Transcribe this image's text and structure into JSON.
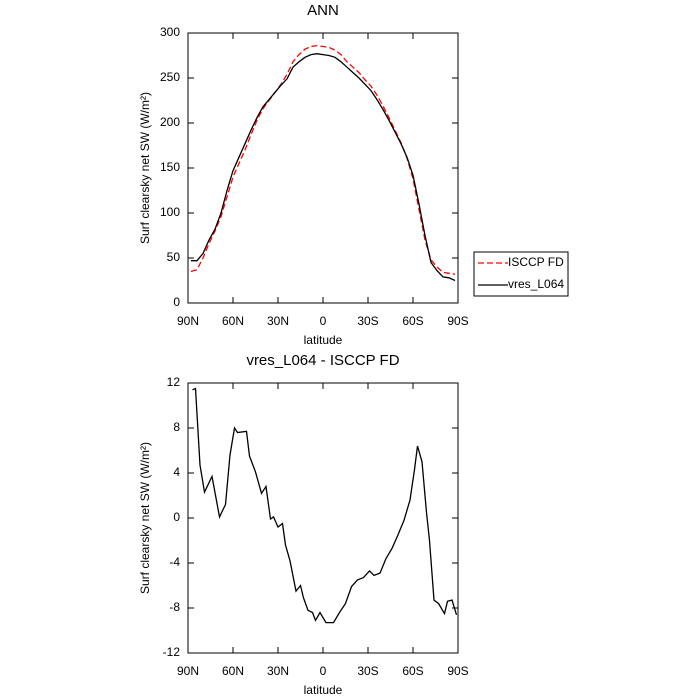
{
  "chart_data": [
    {
      "type": "line",
      "title": "ANN",
      "xlabel": "latitude",
      "ylabel": "Surf clearsky net SW (W/m²)",
      "x": [
        88,
        84,
        80,
        76,
        72,
        68,
        64,
        60,
        56,
        52,
        48,
        44,
        40,
        36,
        32,
        28,
        24,
        20,
        16,
        12,
        8,
        4,
        0,
        -4,
        -8,
        -12,
        -16,
        -20,
        -24,
        -28,
        -32,
        -36,
        -40,
        -44,
        -48,
        -52,
        -56,
        -60,
        -64,
        -68,
        -72,
        -76,
        -80,
        -84,
        -88
      ],
      "series": [
        {
          "name": "ISCCP FD",
          "color": "#ff0000",
          "dashed": true,
          "values": [
            35,
            37,
            50,
            66,
            80,
            96,
            118,
            140,
            155,
            170,
            187,
            203,
            216,
            225,
            234,
            243,
            254,
            268,
            276,
            282,
            285,
            286,
            285,
            284,
            281,
            276,
            268,
            262,
            256,
            248,
            241,
            231,
            219,
            206,
            192,
            178,
            161,
            138,
            104,
            70,
            48,
            40,
            34,
            33,
            32
          ]
        },
        {
          "name": "vres_L064",
          "color": "#000000",
          "dashed": false,
          "values": [
            47,
            47,
            55,
            70,
            82,
            100,
            125,
            147,
            162,
            177,
            192,
            206,
            218,
            226,
            234,
            242,
            249,
            262,
            268,
            273,
            276,
            277,
            276,
            275,
            273,
            268,
            262,
            256,
            250,
            243,
            236,
            226,
            215,
            203,
            190,
            177,
            162,
            142,
            110,
            75,
            45,
            36,
            29,
            28,
            25
          ]
        }
      ],
      "xlim": [
        90,
        -90
      ],
      "xticks": [
        {
          "value": 90,
          "label": "90N"
        },
        {
          "value": 60,
          "label": "60N"
        },
        {
          "value": 30,
          "label": "30N"
        },
        0,
        {
          "value": -30,
          "label": "30S"
        },
        {
          "value": -60,
          "label": "60S"
        },
        {
          "value": -90,
          "label": "90S"
        }
      ],
      "ylim": [
        0,
        300
      ],
      "yticks": [
        0,
        50,
        100,
        150,
        200,
        250,
        300
      ],
      "legend": "right"
    },
    {
      "type": "line",
      "title": "vres_L064 - ISCCP FD",
      "xlabel": "latitude",
      "ylabel": "Surf clearsky net SW (W/m²)",
      "x": [
        87,
        85,
        82,
        79,
        74,
        69,
        65,
        62,
        59,
        57,
        51,
        49,
        45,
        41,
        38,
        35,
        33,
        30,
        27,
        25,
        22,
        18,
        15,
        13,
        10,
        7,
        5,
        2,
        -2,
        -7,
        -11,
        -15,
        -19,
        -23,
        -27,
        -31,
        -34,
        -38,
        -42,
        -46,
        -50,
        -54,
        -58,
        -61,
        -63,
        -66,
        -69,
        -71,
        -74,
        -77,
        -81,
        -83,
        -86,
        -89
      ],
      "color": "#000000",
      "values": [
        11.4,
        11.5,
        4.7,
        2.3,
        3.7,
        0.1,
        1.2,
        5.6,
        8,
        7.6,
        7.7,
        5.5,
        4.1,
        2.2,
        2.8,
        -0.1,
        0.1,
        -0.8,
        -0.5,
        -2.4,
        -3.8,
        -6.5,
        -6,
        -7.1,
        -8.2,
        -8.4,
        -9.1,
        -8.4,
        -9.3,
        -9.3,
        -8.4,
        -7.6,
        -6.1,
        -5.5,
        -5.3,
        -4.7,
        -5.1,
        -4.9,
        -3.6,
        -2.7,
        -1.5,
        -0.2,
        1.6,
        4.3,
        6.4,
        5,
        0.5,
        -2,
        -7.3,
        -7.6,
        -8.5,
        -7.4,
        -7.3,
        -8.6
      ],
      "xlim": [
        90,
        -90
      ],
      "xticks": [
        {
          "value": 90,
          "label": "90N"
        },
        {
          "value": 60,
          "label": "60N"
        },
        {
          "value": 30,
          "label": "30N"
        },
        0,
        {
          "value": -30,
          "label": "30S"
        },
        {
          "value": -60,
          "label": "60S"
        },
        {
          "value": -90,
          "label": "90S"
        }
      ],
      "ylim": [
        -12,
        12
      ],
      "yticks": [
        -12,
        -8,
        -4,
        0,
        4,
        8,
        12
      ]
    }
  ]
}
